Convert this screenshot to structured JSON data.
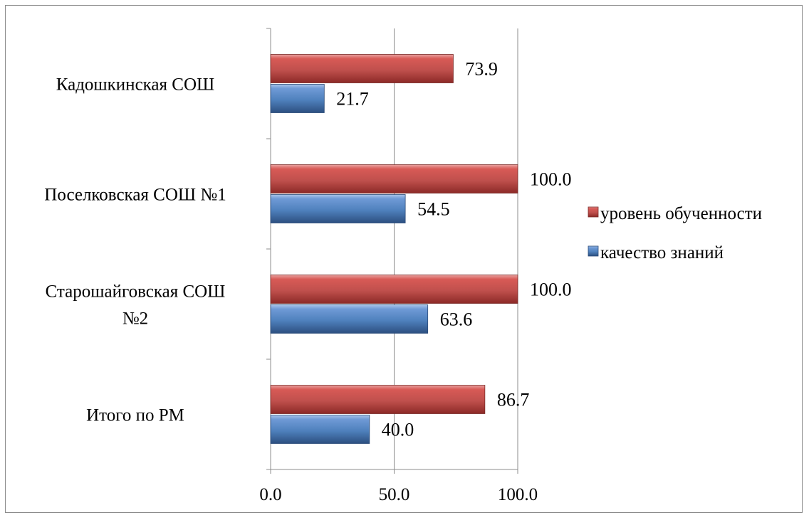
{
  "chart_data": {
    "type": "bar",
    "orientation": "horizontal",
    "categories": [
      [
        "Кадошкинская СОШ"
      ],
      [
        "Поселковская СОШ №1"
      ],
      [
        "Старошайговская СОШ",
        "№2"
      ],
      [
        "Итого по РМ"
      ]
    ],
    "series": [
      {
        "name": "уровень обученности",
        "color": "#c0504d",
        "values": [
          73.9,
          100.0,
          100.0,
          86.7
        ]
      },
      {
        "name": "качество знаний",
        "color": "#4f81bd",
        "values": [
          21.7,
          54.5,
          63.6,
          40.0
        ]
      }
    ],
    "xlim": [
      0,
      100
    ],
    "x_ticks": [
      0,
      50,
      100
    ],
    "x_tick_labels": [
      "0.0",
      "50.0",
      "100.0"
    ],
    "value_format_decimals": 1,
    "grid": "vertical",
    "legend": "right",
    "title": "",
    "xlabel": "",
    "ylabel": ""
  }
}
